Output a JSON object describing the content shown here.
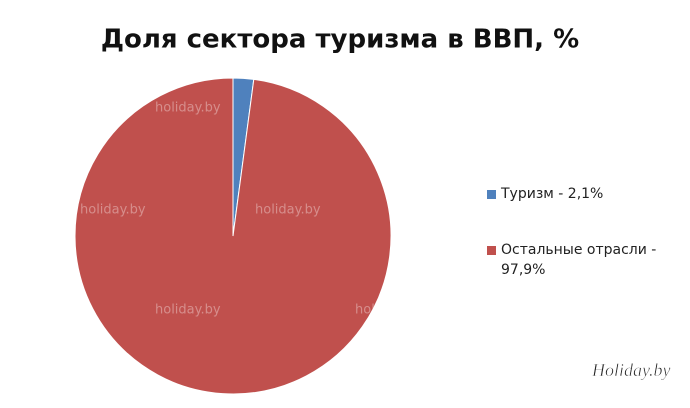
{
  "chart_data": {
    "type": "pie",
    "title": "Доля сектора туризма в ВВП, %",
    "categories": [
      "Туризм - 2,1%",
      "Остальные отрасли - 97,9%"
    ],
    "values": [
      2.1,
      97.9
    ],
    "colors": [
      "#4f81bd",
      "#c0504d"
    ],
    "legend": "right",
    "watermark": "holiday.by",
    "logo": "Holiday.by"
  }
}
